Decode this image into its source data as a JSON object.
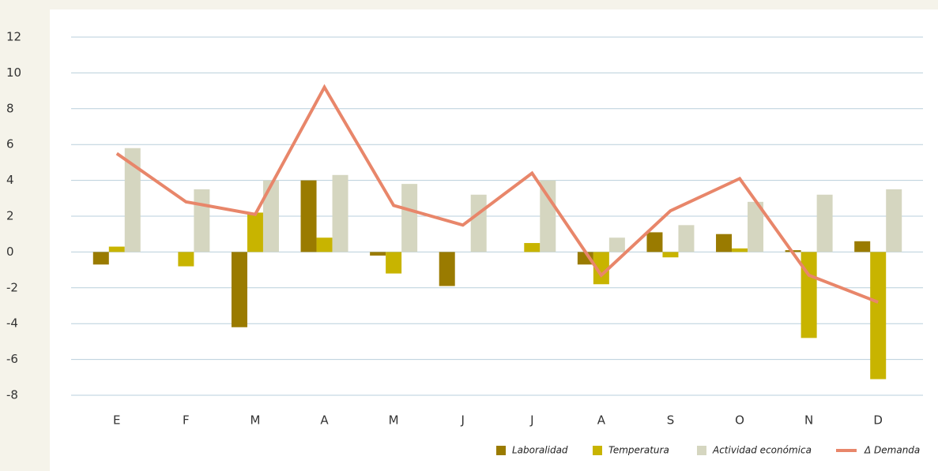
{
  "chart_data": {
    "type": "bar",
    "categories": [
      "E",
      "F",
      "M",
      "A",
      "M",
      "J",
      "J",
      "A",
      "S",
      "O",
      "N",
      "D"
    ],
    "series": [
      {
        "name": "Laboralidad",
        "color": "#9a7b00",
        "type": "bar",
        "values": [
          -0.7,
          0,
          -4.2,
          4.0,
          -0.2,
          -1.9,
          0,
          -0.7,
          1.1,
          1.0,
          0.1,
          0.6
        ]
      },
      {
        "name": "Temperatura",
        "color": "#c8b400",
        "type": "bar",
        "values": [
          0.3,
          -0.8,
          2.2,
          0.8,
          -1.2,
          0,
          0.5,
          -1.8,
          -0.3,
          0.2,
          -4.8,
          -7.1
        ]
      },
      {
        "name": "Actividad económica",
        "color": "#d5d6c0",
        "type": "bar",
        "values": [
          5.8,
          3.5,
          4.0,
          4.3,
          3.8,
          3.2,
          4.0,
          0.8,
          1.5,
          2.8,
          3.2,
          3.5
        ]
      },
      {
        "name": "Δ Demanda",
        "color": "#e8866a",
        "type": "line",
        "values": [
          5.5,
          2.8,
          2.1,
          9.2,
          2.6,
          1.5,
          4.4,
          -1.3,
          2.3,
          4.1,
          -1.3,
          -2.8
        ]
      }
    ],
    "ylim": [
      -8,
      12
    ],
    "yticks": [
      -8,
      -6,
      -4,
      -2,
      0,
      2,
      4,
      6,
      8,
      10,
      12
    ],
    "grid": true,
    "legend": "bottom-right"
  }
}
